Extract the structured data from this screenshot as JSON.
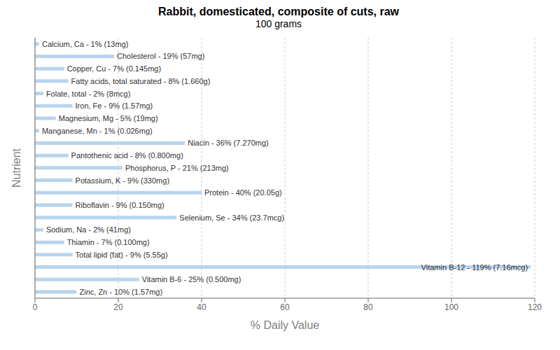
{
  "chart_data": {
    "type": "bar",
    "orientation": "horizontal",
    "title": "Rabbit, domesticated, composite of cuts, raw",
    "subtitle": "100 grams",
    "xlabel": "% Daily Value",
    "ylabel": "Nutrient",
    "categories": [
      "Calcium, Ca - 1% (13mg)",
      "Cholesterol - 19% (57mg)",
      "Copper, Cu - 7% (0.145mg)",
      "Fatty acids, total saturated - 8% (1.660g)",
      "Folate, total - 2% (8mcg)",
      "Iron, Fe - 9% (1.57mg)",
      "Magnesium, Mg - 5% (19mg)",
      "Manganese, Mn - 1% (0.026mg)",
      "Niacin - 36% (7.270mg)",
      "Pantothenic acid - 8% (0.800mg)",
      "Phosphorus, P - 21% (213mg)",
      "Potassium, K - 9% (330mg)",
      "Protein - 40% (20.05g)",
      "Riboflavin - 9% (0.150mg)",
      "Selenium, Se - 34% (23.7mcg)",
      "Sodium, Na - 2% (41mg)",
      "Thiamin - 7% (0.100mg)",
      "Total lipid (fat) - 9% (5.55g)",
      "Vitamin B-12 - 119% (7.16mcg)",
      "Vitamin B-6 - 25% (0.500mg)",
      "Zinc, Zn - 10% (1.57mg)"
    ],
    "values": [
      1,
      19,
      7,
      8,
      2,
      9,
      5,
      1,
      36,
      8,
      21,
      9,
      40,
      9,
      34,
      2,
      7,
      9,
      119,
      25,
      10
    ],
    "color": "#b8d4ee",
    "xlim": [
      0,
      120
    ],
    "xticks": [
      0,
      20,
      40,
      60,
      80,
      100,
      120
    ],
    "grid": true,
    "tick_labels": "x"
  }
}
